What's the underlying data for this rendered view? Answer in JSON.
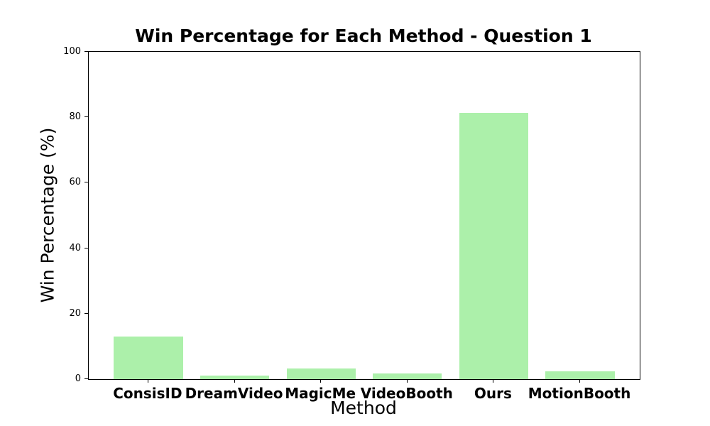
{
  "chart_data": {
    "type": "bar",
    "title": "Win Percentage for Each Method - Question 1",
    "xlabel": "Method",
    "ylabel": "Win Percentage (%)",
    "categories": [
      "ConsisID",
      "DreamVideo",
      "MagicMe",
      "VideoBooth",
      "Ours",
      "MotionBooth"
    ],
    "values": [
      13.0,
      1.1,
      3.3,
      1.7,
      81.4,
      2.3
    ],
    "ylim": [
      0,
      100
    ],
    "yticks": [
      0,
      20,
      40,
      60,
      80,
      100
    ],
    "bar_color": "#acf0aa",
    "axis_color": "#000000",
    "background_color": "#ffffff",
    "grid": false,
    "legend": false
  }
}
